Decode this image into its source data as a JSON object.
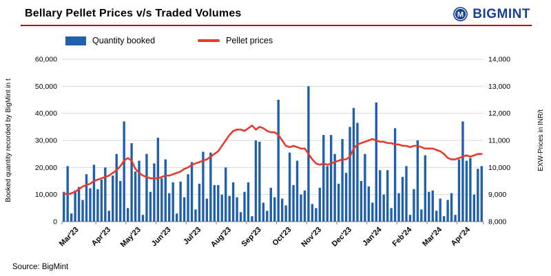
{
  "header": {
    "title": "Bellary Pellet Prices v/s Traded Volumes",
    "logo_text": "BIGMINT"
  },
  "legend": [
    {
      "label": "Quantity booked",
      "type": "bar",
      "color": "#1f5fac"
    },
    {
      "label": "Pellet prices",
      "type": "line",
      "color": "#e63a2e"
    }
  ],
  "source": "Source: BigMint",
  "colors": {
    "bar": "#1f5fac",
    "line": "#e63a2e",
    "grid": "#d9d9d9",
    "axis": "#7f7f7f",
    "navy": "#17418f",
    "rule": "#c00000"
  },
  "chart_data": {
    "type": "combo",
    "title": "Bellary Pellet Prices v/s Traded Volumes",
    "x_labels": [
      "Mar'23",
      "Apr'23",
      "May'23",
      "Jun'23",
      "Jul'23",
      "Aug'23",
      "Sep'23",
      "Oct'23",
      "Nov'23",
      "Dec'23",
      "Jan'24",
      "Feb'24",
      "Mar'24",
      "Apr'24"
    ],
    "bars_per_month": [
      9,
      8,
      8,
      8,
      8,
      8,
      8,
      8,
      8,
      8,
      8,
      8,
      8,
      7
    ],
    "left_axis": {
      "label": "Booked quantity recorded by BigMint in t",
      "min": 0,
      "max": 60000,
      "step": 10000
    },
    "right_axis": {
      "label": "EXW-Prices in INR/t",
      "min": 8000,
      "max": 14000,
      "step": 1000
    },
    "grid": true,
    "legend_position": "top-left",
    "series": [
      {
        "name": "Quantity booked",
        "type": "bar",
        "axis": "left",
        "values": [
          11000,
          20500,
          3000,
          11500,
          12800,
          8000,
          17500,
          12300,
          21000,
          12000,
          15500,
          20000,
          4000,
          17000,
          25000,
          15000,
          37000,
          5000,
          29000,
          18500,
          22500,
          2500,
          25000,
          11000,
          21500,
          31000,
          16000,
          23000,
          10500,
          14500,
          3000,
          14800,
          9000,
          17500,
          22000,
          4500,
          14000,
          25800,
          8500,
          25500,
          13500,
          13500,
          10000,
          20000,
          9500,
          14500,
          9000,
          3500,
          11000,
          14500,
          2000,
          30000,
          29500,
          7000,
          4000,
          12500,
          9000,
          45000,
          8500,
          6000,
          25500,
          13500,
          22500,
          10000,
          11500,
          50000,
          6500,
          5000,
          12500,
          32000,
          20500,
          32000,
          25000,
          14000,
          30500,
          18000,
          35000,
          42000,
          36500,
          15000,
          25000,
          13000,
          7000,
          44000,
          19000,
          10000,
          19000,
          5000,
          34500,
          10500,
          16500,
          20500,
          2500,
          12000,
          30000,
          4500,
          24500,
          11000,
          11500,
          4000,
          8500,
          2000,
          8000,
          10500,
          2500,
          23000,
          37000,
          22500,
          23500,
          10000,
          19500,
          20500
        ]
      },
      {
        "name": "Pellet prices",
        "type": "line",
        "axis": "right",
        "values": [
          9050,
          9000,
          9050,
          9100,
          9200,
          9300,
          9350,
          9400,
          9500,
          9550,
          9600,
          9650,
          9700,
          9800,
          9900,
          10050,
          10250,
          10350,
          10250,
          9950,
          9800,
          9700,
          9650,
          9600,
          9600,
          9600,
          9650,
          9700,
          9700,
          9750,
          9800,
          9850,
          9950,
          10000,
          10100,
          10150,
          10200,
          10250,
          10300,
          10400,
          10500,
          10600,
          10800,
          11000,
          11200,
          11350,
          11400,
          11400,
          11350,
          11450,
          11550,
          11400,
          11500,
          11450,
          11350,
          11300,
          11300,
          11200,
          11000,
          10800,
          10750,
          10800,
          10750,
          10700,
          10700,
          10500,
          10300,
          10150,
          10100,
          10150,
          10100,
          10150,
          10200,
          10250,
          10300,
          10300,
          10400,
          10700,
          10850,
          10900,
          10950,
          11000,
          11050,
          11000,
          10950,
          10950,
          10900,
          10900,
          10850,
          10850,
          10800,
          10800,
          10750,
          10800,
          10800,
          10750,
          10700,
          10700,
          10700,
          10650,
          10600,
          10500,
          10350,
          10300,
          10300,
          10350,
          10400,
          10450,
          10400,
          10450,
          10500,
          10500
        ]
      }
    ]
  }
}
